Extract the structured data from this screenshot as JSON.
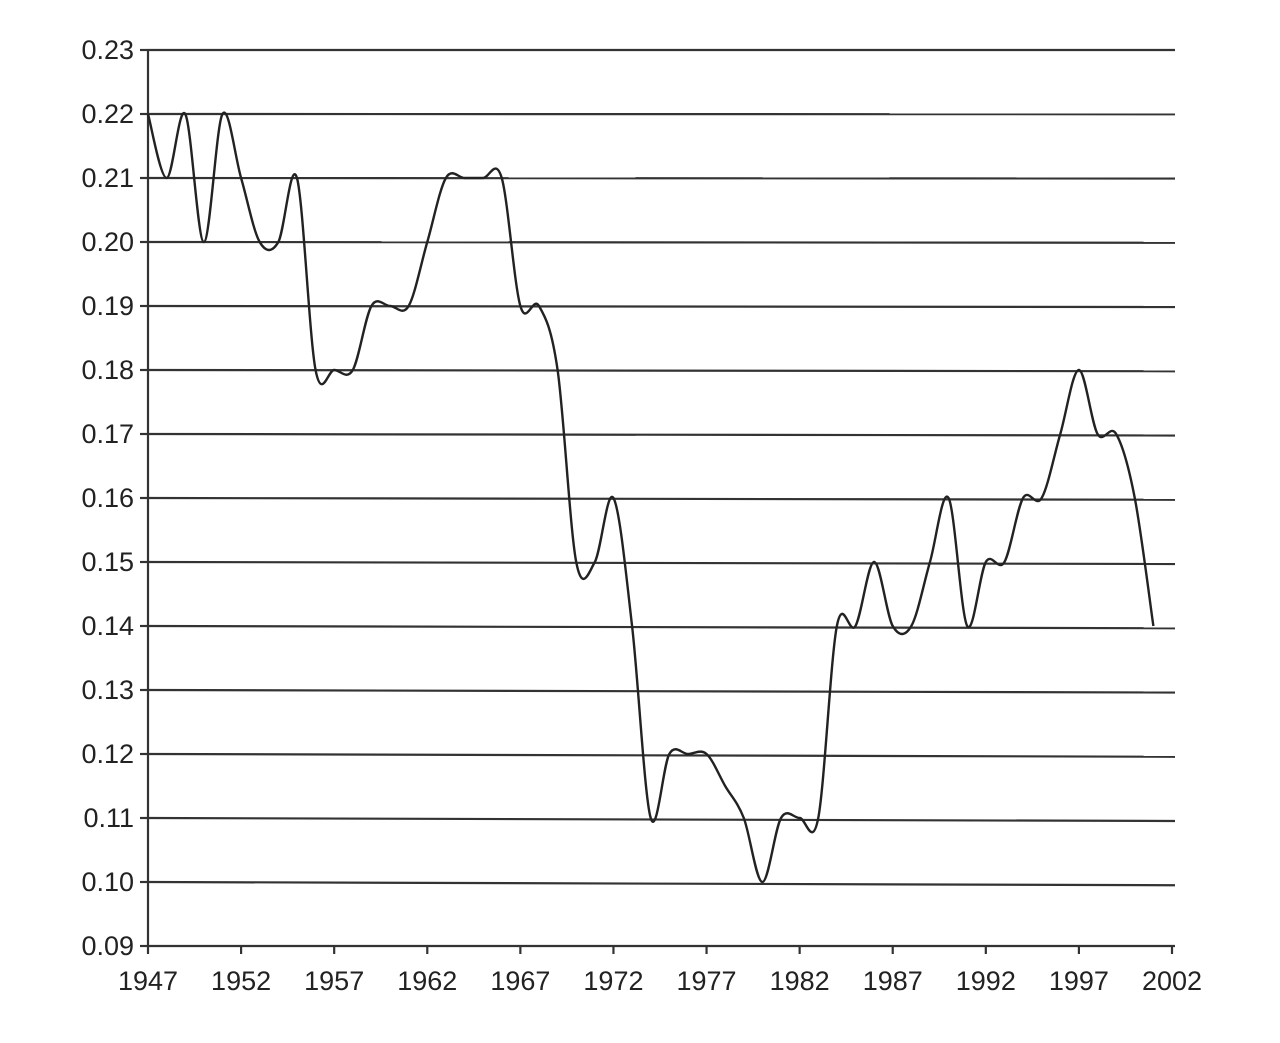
{
  "chart_data": {
    "type": "line",
    "title": "",
    "xlabel": "",
    "ylabel": "",
    "xlim": [
      1947,
      2002
    ],
    "ylim": [
      0.09,
      0.23
    ],
    "grid": "horizontal",
    "x_ticks": [
      "1947",
      "1952",
      "1957",
      "1962",
      "1967",
      "1972",
      "1977",
      "1982",
      "1987",
      "1992",
      "1997",
      "2002"
    ],
    "y_ticks": [
      "0.23",
      "0.22",
      "0.21",
      "0.20",
      "0.19",
      "0.18",
      "0.17",
      "0.16",
      "0.15",
      "0.14",
      "0.13",
      "0.12",
      "0.11",
      "0.10",
      "0.09"
    ],
    "series": [
      {
        "x": [
          1947,
          1948,
          1949,
          1950,
          1951,
          1952,
          1953,
          1954,
          1955,
          1956,
          1957,
          1958,
          1959,
          1960,
          1961,
          1962,
          1963,
          1964,
          1965,
          1966,
          1967,
          1968,
          1969,
          1970,
          1971,
          1972,
          1973,
          1974,
          1975,
          1976,
          1977,
          1978,
          1979,
          1980,
          1981,
          1982,
          1983,
          1984,
          1985,
          1986,
          1987,
          1988,
          1989,
          1990,
          1991,
          1992,
          1993,
          1994,
          1995,
          1996,
          1997,
          1998,
          1999,
          2000,
          2001
        ],
        "values": [
          0.22,
          0.21,
          0.22,
          0.2,
          0.22,
          0.21,
          0.2,
          0.2,
          0.21,
          0.18,
          0.18,
          0.18,
          0.19,
          0.19,
          0.19,
          0.2,
          0.21,
          0.21,
          0.21,
          0.21,
          0.19,
          0.19,
          0.18,
          0.15,
          0.15,
          0.16,
          0.14,
          0.11,
          0.12,
          0.12,
          0.12,
          0.115,
          0.11,
          0.1,
          0.11,
          0.11,
          0.11,
          0.14,
          0.14,
          0.15,
          0.14,
          0.14,
          0.15,
          0.16,
          0.14,
          0.15,
          0.15,
          0.16,
          0.16,
          0.17,
          0.18,
          0.17,
          0.17,
          0.16,
          0.14
        ],
        "color": "#222222"
      }
    ]
  }
}
